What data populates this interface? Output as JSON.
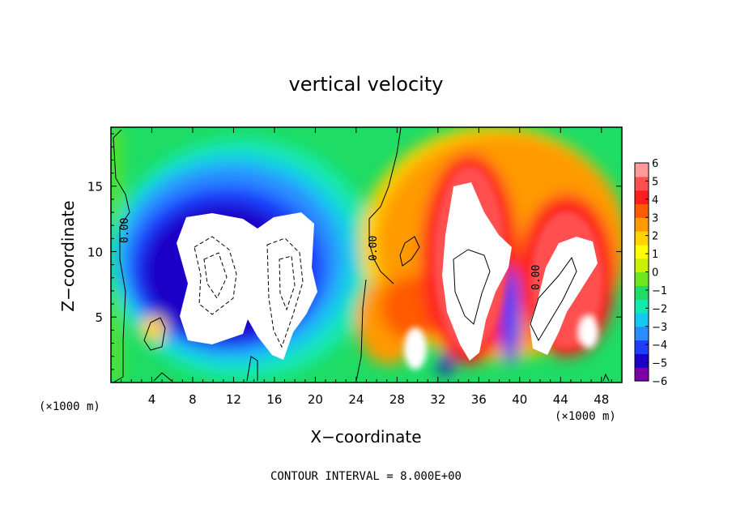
{
  "chart_data": {
    "type": "heatmap",
    "title": "vertical velocity",
    "xlabel": "X−coordinate",
    "ylabel": "Z−coordinate",
    "x_unit": "(×1000 m)",
    "y_unit": "(×1000 m)",
    "xlim": [
      0,
      50
    ],
    "ylim": [
      0,
      19.5
    ],
    "x_ticks": [
      4,
      8,
      12,
      16,
      20,
      24,
      28,
      32,
      36,
      40,
      44,
      48
    ],
    "y_ticks": [
      5,
      10,
      15
    ],
    "contour_interval_text": "CONTOUR INTERVAL = 8.000E+00",
    "contour_labels": [
      "0.00",
      "0.00",
      "0.00"
    ],
    "colorbar": {
      "ticks": [
        "6",
        "5",
        "4",
        "3",
        "2",
        "1",
        "0",
        "−1",
        "−2",
        "−3",
        "−4",
        "−5",
        "−6"
      ],
      "range": [
        -6,
        6
      ],
      "colors": [
        "#7b00a8",
        "#1a00c8",
        "#1f3cff",
        "#2a8cff",
        "#15c8f0",
        "#12e8b0",
        "#1edc64",
        "#6ee61e",
        "#c8f000",
        "#ffff00",
        "#ffd200",
        "#ff9a00",
        "#ff5a00",
        "#ff1e1e",
        "#ff5050",
        "#ff9a9a"
      ]
    },
    "features": [
      {
        "kind": "downdraft",
        "min": -6,
        "x_range": [
          5,
          22
        ],
        "z_range": [
          2,
          16
        ]
      },
      {
        "kind": "updraft",
        "max": 6,
        "x_range": [
          31,
          38
        ],
        "z_range": [
          1,
          16
        ]
      },
      {
        "kind": "updraft",
        "max": 6,
        "x_range": [
          40,
          48
        ],
        "z_range": [
          2,
          12
        ]
      }
    ]
  }
}
